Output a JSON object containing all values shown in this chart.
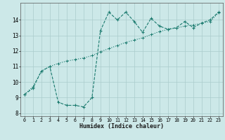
{
  "title": "",
  "xlabel": "Humidex (Indice chaleur)",
  "ylabel": "",
  "background_color": "#cce8e8",
  "grid_color": "#aacccc",
  "line_color": "#1a7a6e",
  "xlim": [
    -0.5,
    23.5
  ],
  "ylim": [
    7.8,
    15.1
  ],
  "xticks": [
    0,
    1,
    2,
    3,
    4,
    5,
    6,
    7,
    8,
    9,
    10,
    11,
    12,
    13,
    14,
    15,
    16,
    17,
    18,
    19,
    20,
    21,
    22,
    23
  ],
  "yticks": [
    8,
    9,
    10,
    11,
    12,
    13,
    14
  ],
  "curve1_x": [
    0,
    1,
    2,
    3,
    4,
    5,
    6,
    7,
    8,
    9,
    10,
    11,
    12,
    13,
    14,
    15,
    16,
    17,
    18,
    19,
    20,
    21,
    22,
    23
  ],
  "curve1_y": [
    9.2,
    9.6,
    10.7,
    11.0,
    8.7,
    8.5,
    8.5,
    8.4,
    9.0,
    13.3,
    14.5,
    14.0,
    14.5,
    13.9,
    13.2,
    14.1,
    13.6,
    13.4,
    13.5,
    13.9,
    13.5,
    13.8,
    14.0,
    14.5
  ],
  "curve2_x": [
    0,
    1,
    2,
    3,
    4,
    5,
    6,
    7,
    8,
    9,
    10,
    11,
    12,
    13,
    14,
    15,
    16,
    17,
    18,
    19,
    20,
    21,
    22,
    23
  ],
  "curve2_y": [
    9.2,
    9.7,
    10.7,
    11.0,
    11.2,
    11.35,
    11.45,
    11.55,
    11.7,
    11.95,
    12.15,
    12.35,
    12.55,
    12.7,
    12.85,
    13.05,
    13.25,
    13.38,
    13.48,
    13.6,
    13.68,
    13.78,
    13.9,
    14.45
  ]
}
